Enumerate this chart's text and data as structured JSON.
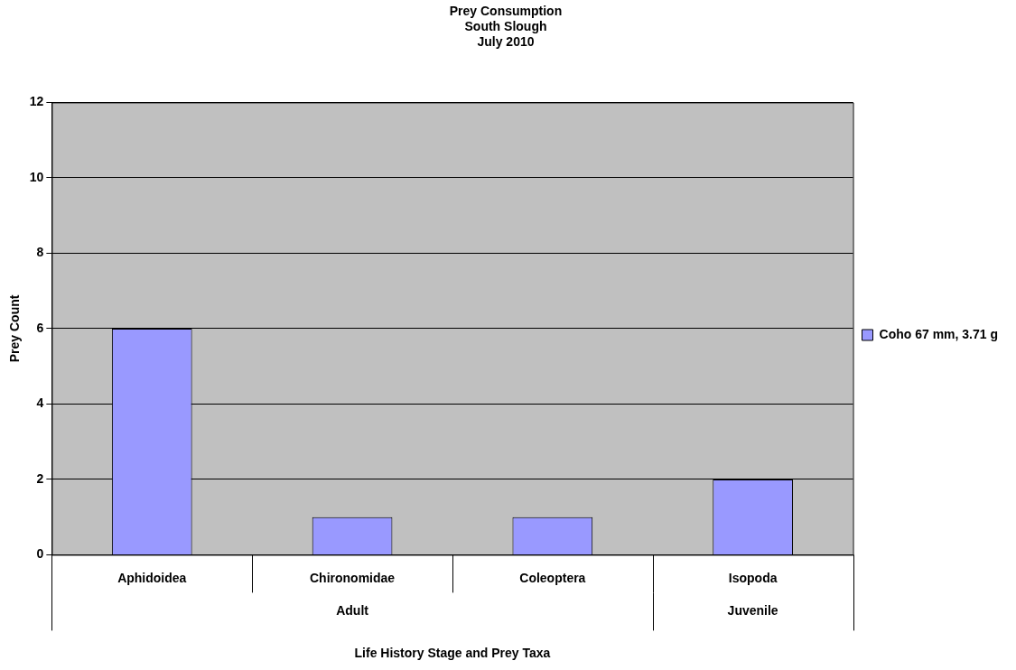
{
  "chart_data": {
    "type": "bar",
    "title": "Prey Consumption\nSouth Slough\nJuly 2010",
    "xlabel": "Life History Stage and Prey Taxa",
    "ylabel": "Prey Count",
    "categories": [
      "Aphidoidea",
      "Chironomidae",
      "Coleoptera",
      "Isopoda"
    ],
    "series": [
      {
        "name": "Coho 67 mm, 3.71 g",
        "color": "#9999ff",
        "values": [
          6,
          1,
          1,
          2
        ]
      }
    ],
    "ylim": [
      0,
      12
    ],
    "yticks": [
      0,
      2,
      4,
      6,
      8,
      10,
      12
    ],
    "grid": "y",
    "legend": "right",
    "annotations": [
      "Adult",
      "Juvenile"
    ]
  }
}
